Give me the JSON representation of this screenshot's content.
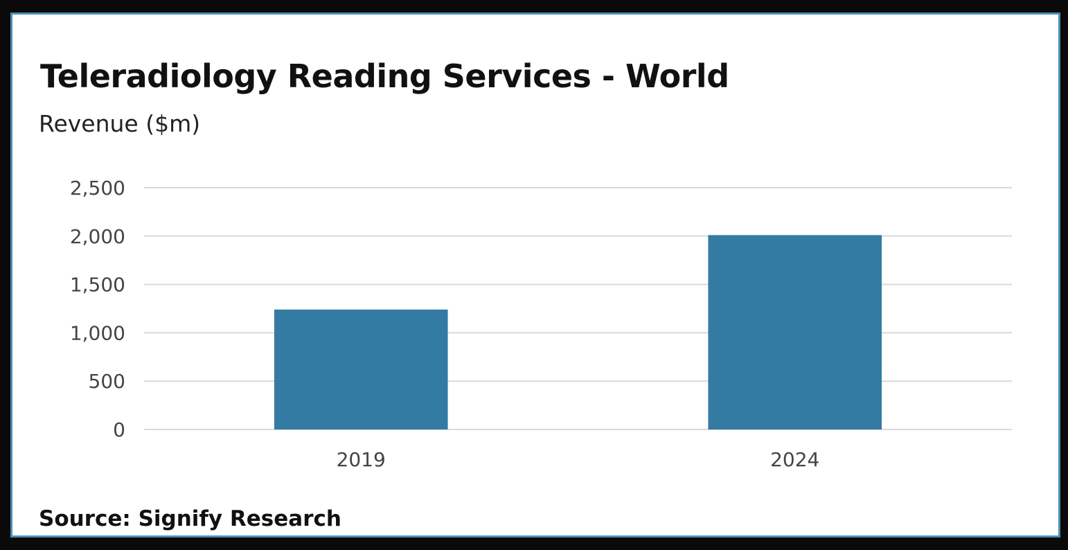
{
  "chart_data": {
    "type": "bar",
    "title": "Teleradiology Reading Services - World",
    "ylabel": "Revenue ($m)",
    "xlabel": "",
    "categories": [
      "2019",
      "2024"
    ],
    "values": [
      1240,
      2010
    ],
    "ylim": [
      0,
      2500
    ],
    "yticks": [
      0,
      500,
      1000,
      1500,
      2000,
      2500
    ],
    "ytick_labels": [
      "0",
      "500",
      "1,000",
      "1,500",
      "2,000",
      "2,500"
    ],
    "grid": true,
    "bar_color": "#337ba3",
    "grid_color": "#d9d9d9",
    "source": "Source: Signify Research"
  }
}
